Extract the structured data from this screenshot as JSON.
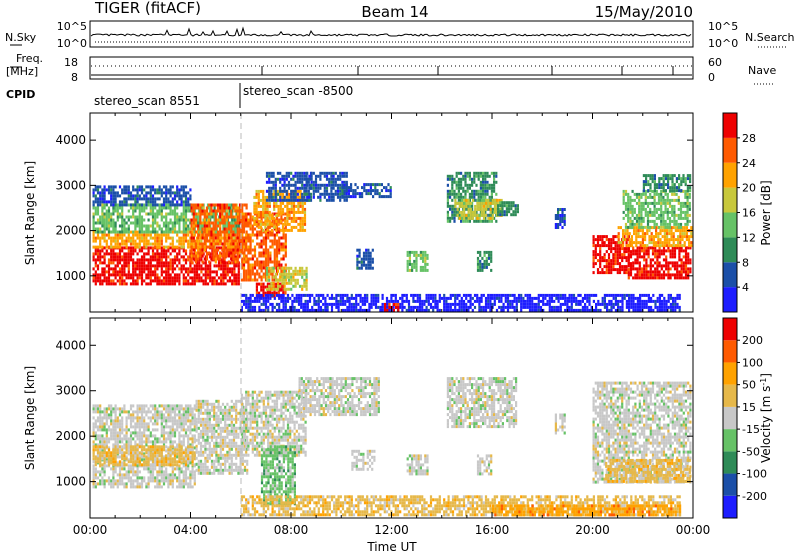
{
  "header": {
    "station": "TIGER (fitACF)",
    "beam": "Beam 14",
    "date": "15/May/2010"
  },
  "strip_labels": {
    "nsky": "N.Sky",
    "nsearch": "N.Search",
    "nsky_ticks": [
      "10^5",
      "10^0"
    ],
    "nsearch_ticks": [
      "10^5",
      "10^0"
    ],
    "freq_line1": "Freq.",
    "freq_line2": "[MHz]",
    "freq_ticks": [
      "18",
      "8"
    ],
    "nave": "Nave",
    "nave_ticks": [
      "60",
      "0"
    ],
    "cpid": "CPID",
    "cpid_first": "stereo_scan 8551",
    "cpid_second": "stereo_scan -8500"
  },
  "chart_data": [
    {
      "type": "heatmap",
      "panel": "power",
      "title": "",
      "xlabel": "",
      "ylabel": "Slant Range [km]",
      "xlim_hours": [
        0,
        24
      ],
      "ylim": [
        200,
        4600
      ],
      "y_ticks": [
        1000,
        2000,
        3000,
        4000
      ],
      "colorbar_label": "Power [dB]",
      "colorbar_ticks": [
        "4",
        "8",
        "12",
        "16",
        "20",
        "24",
        "28"
      ],
      "colorbar_colors": [
        "#1d1dff",
        "#1b4fa8",
        "#2e8b57",
        "#66c266",
        "#c8c83c",
        "#ffa200",
        "#ff5a00",
        "#ee0000"
      ],
      "regions": [
        {
          "t": [
            0.1,
            5.9
          ],
          "r": [
            850,
            1650
          ],
          "level": 7
        },
        {
          "t": [
            0.1,
            5.9
          ],
          "r": [
            1650,
            2000
          ],
          "level": 5
        },
        {
          "t": [
            0.1,
            6.0
          ],
          "r": [
            2000,
            2600
          ],
          "level": 3
        },
        {
          "t": [
            0.1,
            4.0
          ],
          "r": [
            2600,
            3000
          ],
          "level": 1
        },
        {
          "t": [
            4.0,
            6.2
          ],
          "r": [
            1300,
            2600
          ],
          "level": 6
        },
        {
          "t": [
            6.0,
            7.8
          ],
          "r": [
            900,
            2400
          ],
          "level": 6
        },
        {
          "t": [
            6.5,
            8.6
          ],
          "r": [
            2000,
            2900
          ],
          "level": 5
        },
        {
          "t": [
            7.0,
            8.8
          ],
          "r": [
            2700,
            3300
          ],
          "level": 1
        },
        {
          "t": [
            6.6,
            7.8
          ],
          "r": [
            550,
            850
          ],
          "level": 7
        },
        {
          "t": [
            7.0,
            8.6
          ],
          "r": [
            700,
            1200
          ],
          "level": 4
        },
        {
          "t": [
            8.6,
            10.2
          ],
          "r": [
            2700,
            3300
          ],
          "level": 1
        },
        {
          "t": [
            10.0,
            12.0
          ],
          "r": [
            2750,
            3050
          ],
          "level": 1
        },
        {
          "t": [
            10.6,
            11.3
          ],
          "r": [
            1200,
            1600
          ],
          "level": 1
        },
        {
          "t": [
            12.6,
            13.4
          ],
          "r": [
            1100,
            1550
          ],
          "level": 3
        },
        {
          "t": [
            14.2,
            16.2
          ],
          "r": [
            2200,
            3300
          ],
          "level": 2
        },
        {
          "t": [
            14.5,
            16.4
          ],
          "r": [
            2300,
            2700
          ],
          "level": 4
        },
        {
          "t": [
            16.2,
            17.0
          ],
          "r": [
            2350,
            2650
          ],
          "level": 2
        },
        {
          "t": [
            15.4,
            16.0
          ],
          "r": [
            1150,
            1550
          ],
          "level": 2
        },
        {
          "t": [
            18.5,
            18.9
          ],
          "r": [
            2100,
            2500
          ],
          "level": 1
        },
        {
          "t": [
            20.0,
            21.5
          ],
          "r": [
            1100,
            1900
          ],
          "level": 7
        },
        {
          "t": [
            21.4,
            23.9
          ],
          "r": [
            950,
            1650
          ],
          "level": 7
        },
        {
          "t": [
            21.0,
            23.9
          ],
          "r": [
            1650,
            2100
          ],
          "level": 5
        },
        {
          "t": [
            21.2,
            23.9
          ],
          "r": [
            2100,
            2900
          ],
          "level": 3
        },
        {
          "t": [
            22.0,
            23.9
          ],
          "r": [
            2900,
            3250
          ],
          "level": 2
        },
        {
          "t": [
            6.0,
            23.5
          ],
          "r": [
            250,
            600
          ],
          "level": 0
        },
        {
          "t": [
            11.7,
            12.3
          ],
          "r": [
            250,
            400
          ],
          "level": 7
        }
      ]
    },
    {
      "type": "heatmap",
      "panel": "velocity",
      "title": "",
      "xlabel": "Time UT",
      "ylabel": "Slant Range [km]",
      "xlim_hours": [
        0,
        24
      ],
      "ylim": [
        200,
        4600
      ],
      "y_ticks": [
        1000,
        2000,
        3000,
        4000
      ],
      "x_ticks": [
        "00:00",
        "04:00",
        "08:00",
        "12:00",
        "16:00",
        "20:00",
        "00:00"
      ],
      "colorbar_label": "Velocity [m s^-1]",
      "colorbar_ticks": [
        "200",
        "100",
        "50",
        "15",
        "-15",
        "-50",
        "-100",
        "-200"
      ],
      "colorbar_colors": [
        "#1d1dff",
        "#1b4fa8",
        "#2e8b57",
        "#66c266",
        "#c8c8c8",
        "#e6b84a",
        "#ffa200",
        "#ff5a00",
        "#ee0000"
      ],
      "regions": [
        {
          "t": [
            0.1,
            4.2
          ],
          "r": [
            900,
            2700
          ],
          "level": 4
        },
        {
          "t": [
            0.1,
            4.2
          ],
          "r": [
            1400,
            1800
          ],
          "level": 5
        },
        {
          "t": [
            4.2,
            6.3
          ],
          "r": [
            1200,
            2800
          ],
          "level": 4
        },
        {
          "t": [
            6.0,
            8.6
          ],
          "r": [
            1600,
            3000
          ],
          "level": 4
        },
        {
          "t": [
            6.8,
            8.2
          ],
          "r": [
            500,
            1800
          ],
          "level": 3
        },
        {
          "t": [
            8.3,
            11.5
          ],
          "r": [
            2500,
            3300
          ],
          "level": 4
        },
        {
          "t": [
            10.4,
            11.3
          ],
          "r": [
            1300,
            1700
          ],
          "level": 4
        },
        {
          "t": [
            12.6,
            13.4
          ],
          "r": [
            1200,
            1600
          ],
          "level": 4
        },
        {
          "t": [
            14.2,
            17.0
          ],
          "r": [
            2200,
            3300
          ],
          "level": 4
        },
        {
          "t": [
            15.4,
            16.0
          ],
          "r": [
            1200,
            1600
          ],
          "level": 4
        },
        {
          "t": [
            18.5,
            18.9
          ],
          "r": [
            2100,
            2500
          ],
          "level": 4
        },
        {
          "t": [
            20.0,
            23.9
          ],
          "r": [
            1000,
            3200
          ],
          "level": 4
        },
        {
          "t": [
            20.5,
            23.9
          ],
          "r": [
            1000,
            1500
          ],
          "level": 5
        },
        {
          "t": [
            6.0,
            23.5
          ],
          "r": [
            250,
            700
          ],
          "level": 5
        },
        {
          "t": [
            16.0,
            23.5
          ],
          "r": [
            250,
            500
          ],
          "level": 6
        }
      ]
    }
  ]
}
